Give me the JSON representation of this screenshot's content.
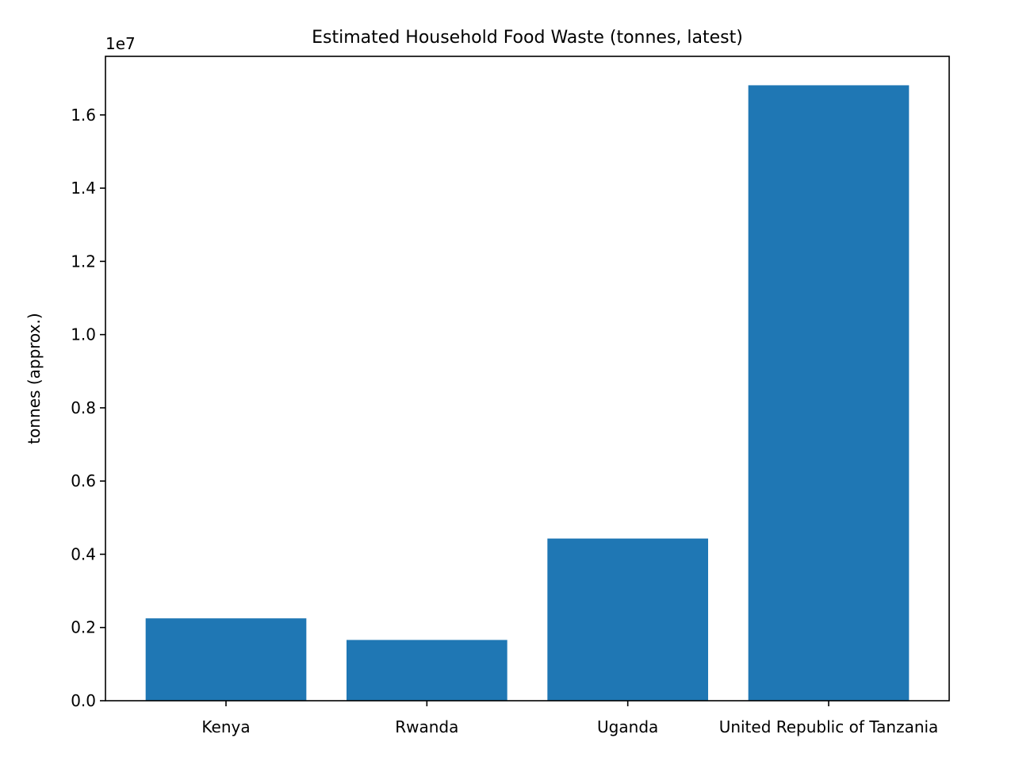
{
  "chart_data": {
    "type": "bar",
    "title": "Estimated Household Food Waste (tonnes, latest)",
    "xlabel": "",
    "ylabel": "tonnes (approx.)",
    "y_offset_label": "1e7",
    "categories": [
      "Kenya",
      "Rwanda",
      "Uganda",
      "United Republic of Tanzania"
    ],
    "values": [
      2250000,
      1660000,
      4430000,
      16810000
    ],
    "ylim": [
      0,
      17600000
    ],
    "yticks": [
      0,
      2000000,
      4000000,
      6000000,
      8000000,
      10000000,
      12000000,
      14000000,
      16000000
    ],
    "ytick_labels": [
      "0.0",
      "0.2",
      "0.4",
      "0.6",
      "0.8",
      "1.0",
      "1.2",
      "1.4",
      "1.6"
    ],
    "bar_color": "#1f77b4",
    "grid": false,
    "legend": "none"
  }
}
